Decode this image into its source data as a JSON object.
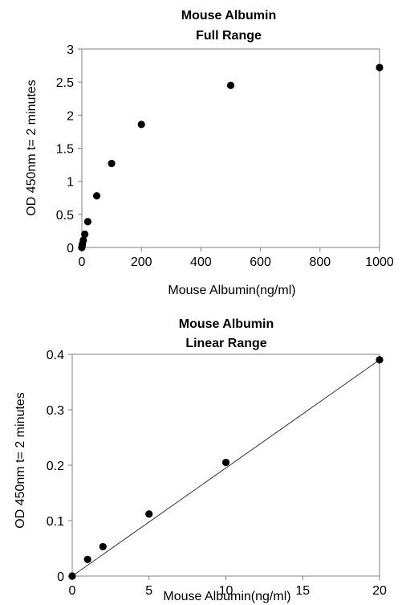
{
  "chart_data": [
    {
      "type": "scatter",
      "title": [
        "Mouse  Albumin",
        "Full Range"
      ],
      "xlabel": "Mouse  Albumin(ng/ml)",
      "ylabel": "OD 450nm t= 2 minutes",
      "xlim": [
        0,
        1000
      ],
      "ylim": [
        0,
        3
      ],
      "xticks": [
        0,
        200,
        400,
        600,
        800,
        1000
      ],
      "yticks": [
        0,
        0.5,
        1,
        1.5,
        2,
        2.5,
        3
      ],
      "xtick_labels": [
        "0",
        "200",
        "400",
        "600",
        "800",
        "1000"
      ],
      "ytick_labels": [
        "0",
        "0.5",
        "1",
        "1.5",
        "2",
        "2.5",
        "3"
      ],
      "grid": false,
      "legend": "none",
      "marker_color": "#000000",
      "series": [
        {
          "points": [
            {
              "x": 0,
              "y": 0
            },
            {
              "x": 1,
              "y": 0.03
            },
            {
              "x": 2,
              "y": 0.05
            },
            {
              "x": 5,
              "y": 0.11
            },
            {
              "x": 10,
              "y": 0.2
            },
            {
              "x": 20,
              "y": 0.39
            },
            {
              "x": 50,
              "y": 0.78
            },
            {
              "x": 100,
              "y": 1.27
            },
            {
              "x": 200,
              "y": 1.86
            },
            {
              "x": 500,
              "y": 2.45
            },
            {
              "x": 1000,
              "y": 2.72
            }
          ]
        }
      ]
    },
    {
      "type": "scatter",
      "title": [
        "Mouse  Albumin",
        "Linear Range"
      ],
      "xlabel": "Mouse  Albumin(ng/ml)",
      "ylabel": "OD 450nm t= 2 minutes",
      "xlim": [
        0,
        20
      ],
      "ylim": [
        0,
        0.4
      ],
      "xticks": [
        0,
        5,
        10,
        15,
        20
      ],
      "yticks": [
        0,
        0.1,
        0.2,
        0.3,
        0.4
      ],
      "xtick_labels": [
        "0",
        "5",
        "10",
        "15",
        "20"
      ],
      "ytick_labels": [
        "0",
        "0.1",
        "0.2",
        "0.3",
        "0.4"
      ],
      "grid": false,
      "legend": "none",
      "marker_color": "#000000",
      "trendline": {
        "type": "linear",
        "from": {
          "x": 0,
          "y": 0
        },
        "to": {
          "x": 20,
          "y": 0.39
        }
      },
      "series": [
        {
          "points": [
            {
              "x": 0,
              "y": 0
            },
            {
              "x": 1,
              "y": 0.03
            },
            {
              "x": 2,
              "y": 0.053
            },
            {
              "x": 5,
              "y": 0.112
            },
            {
              "x": 10,
              "y": 0.205
            },
            {
              "x": 20,
              "y": 0.39
            }
          ]
        }
      ]
    }
  ]
}
